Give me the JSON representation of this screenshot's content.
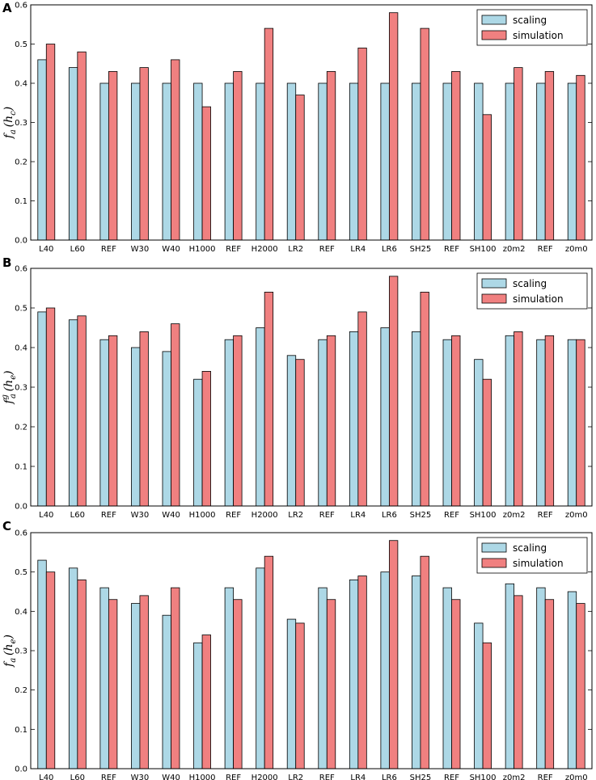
{
  "colors": {
    "scaling": "#add8e6",
    "simulation": "#f08080",
    "edge": "#000000"
  },
  "chart_data": [
    {
      "panel": "A",
      "type": "bar",
      "ylabel": {
        "base": "f",
        "base_sub": "a",
        "base_sup": "",
        "arg": "h",
        "arg_sub": "c"
      },
      "ylim": [
        0,
        0.6
      ],
      "yticks": [
        "0.0",
        "0.1",
        "0.2",
        "0.3",
        "0.4",
        "0.5",
        "0.6"
      ],
      "categories": [
        "L40",
        "L60",
        "REF",
        "W30",
        "W40",
        "H1000",
        "REF",
        "H2000",
        "LR2",
        "REF",
        "LR4",
        "LR6",
        "SH25",
        "REF",
        "SH100",
        "z0m2",
        "REF",
        "z0m0"
      ],
      "legend": [
        "scaling",
        "simulation"
      ],
      "legend_position": "top-right",
      "series": [
        {
          "name": "scaling",
          "values": [
            0.46,
            0.44,
            0.4,
            0.4,
            0.4,
            0.4,
            0.4,
            0.4,
            0.4,
            0.4,
            0.4,
            0.4,
            0.4,
            0.4,
            0.4,
            0.4,
            0.4,
            0.4
          ]
        },
        {
          "name": "simulation",
          "values": [
            0.5,
            0.48,
            0.43,
            0.44,
            0.46,
            0.34,
            0.43,
            0.54,
            0.37,
            0.43,
            0.49,
            0.58,
            0.54,
            0.43,
            0.32,
            0.44,
            0.43,
            0.42
          ]
        }
      ]
    },
    {
      "panel": "B",
      "type": "bar",
      "ylabel": {
        "base": "f",
        "base_sub": "a",
        "base_sup": "g",
        "arg": "h",
        "arg_sub": "e"
      },
      "ylim": [
        0,
        0.6
      ],
      "yticks": [
        "0.0",
        "0.1",
        "0.2",
        "0.3",
        "0.4",
        "0.5",
        "0.6"
      ],
      "categories": [
        "L40",
        "L60",
        "REF",
        "W30",
        "W40",
        "H1000",
        "REF",
        "H2000",
        "LR2",
        "REF",
        "LR4",
        "LR6",
        "SH25",
        "REF",
        "SH100",
        "z0m2",
        "REF",
        "z0m0"
      ],
      "legend": [
        "scaling",
        "simulation"
      ],
      "legend_position": "top-right",
      "series": [
        {
          "name": "scaling",
          "values": [
            0.49,
            0.47,
            0.42,
            0.4,
            0.39,
            0.32,
            0.42,
            0.45,
            0.38,
            0.42,
            0.44,
            0.45,
            0.44,
            0.42,
            0.37,
            0.43,
            0.42,
            0.42
          ]
        },
        {
          "name": "simulation",
          "values": [
            0.5,
            0.48,
            0.43,
            0.44,
            0.46,
            0.34,
            0.43,
            0.54,
            0.37,
            0.43,
            0.49,
            0.58,
            0.54,
            0.43,
            0.32,
            0.44,
            0.43,
            0.42
          ]
        }
      ]
    },
    {
      "panel": "C",
      "type": "bar",
      "ylabel": {
        "base": "f",
        "base_sub": "a",
        "base_sup": "",
        "arg": "h",
        "arg_sub": "e"
      },
      "ylim": [
        0,
        0.6
      ],
      "yticks": [
        "0.0",
        "0.1",
        "0.2",
        "0.3",
        "0.4",
        "0.5",
        "0.6"
      ],
      "categories": [
        "L40",
        "L60",
        "REF",
        "W30",
        "W40",
        "H1000",
        "REF",
        "H2000",
        "LR2",
        "REF",
        "LR4",
        "LR6",
        "SH25",
        "REF",
        "SH100",
        "z0m2",
        "REF",
        "z0m0"
      ],
      "legend": [
        "scaling",
        "simulation"
      ],
      "legend_position": "top-right",
      "series": [
        {
          "name": "scaling",
          "values": [
            0.53,
            0.51,
            0.46,
            0.42,
            0.39,
            0.32,
            0.46,
            0.51,
            0.38,
            0.46,
            0.48,
            0.5,
            0.49,
            0.46,
            0.37,
            0.47,
            0.46,
            0.45
          ]
        },
        {
          "name": "simulation",
          "values": [
            0.5,
            0.48,
            0.43,
            0.44,
            0.46,
            0.34,
            0.43,
            0.54,
            0.37,
            0.43,
            0.49,
            0.58,
            0.54,
            0.43,
            0.32,
            0.44,
            0.43,
            0.42
          ]
        }
      ]
    }
  ]
}
